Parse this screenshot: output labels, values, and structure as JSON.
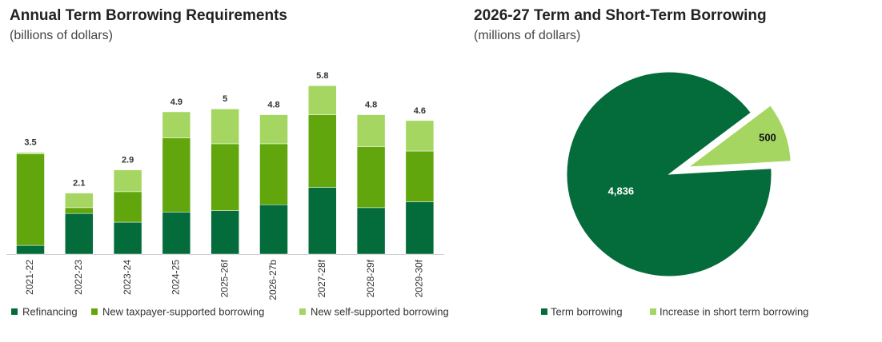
{
  "chart_data": [
    {
      "type": "stacked-bar",
      "title": "Annual Term Borrowing Requirements",
      "subtitle": "(billions of dollars)",
      "categories": [
        "2021-22",
        "2022-23",
        "2023-24",
        "2024-25",
        "2025-26f",
        "2026-27b",
        "2027-28f",
        "2028-29f",
        "2029-30f"
      ],
      "series": [
        {
          "name": "Refinancing",
          "color": "#046b3a",
          "values": [
            0.3,
            1.4,
            1.1,
            1.45,
            1.5,
            1.7,
            2.3,
            1.6,
            1.8
          ]
        },
        {
          "name": "New taxpayer-supported borrowing",
          "color": "#62a60e",
          "values": [
            3.15,
            0.2,
            1.05,
            2.55,
            2.3,
            2.1,
            2.5,
            2.1,
            1.75
          ]
        },
        {
          "name": "New self-supported borrowing",
          "color": "#a6d662",
          "values": [
            0.05,
            0.5,
            0.75,
            0.9,
            1.2,
            1.0,
            1.0,
            1.1,
            1.05
          ]
        }
      ],
      "totals": [
        3.5,
        2.1,
        2.9,
        4.9,
        5.0,
        4.8,
        5.8,
        4.8,
        4.6
      ],
      "ylim": [
        0,
        6
      ],
      "grid": false,
      "legend": "bottom"
    },
    {
      "type": "pie",
      "title": "2026-27 Term and Short-Term Borrowing",
      "subtitle": "(millions of dollars)",
      "categories": [
        "Term borrowing",
        "Increase in short term borrowing"
      ],
      "values": [
        4836,
        500
      ],
      "value_labels": [
        "4,836",
        "500"
      ],
      "colors": [
        "#046b3a",
        "#a6d662"
      ],
      "exploded": [
        false,
        true
      ],
      "legend": "bottom"
    }
  ]
}
